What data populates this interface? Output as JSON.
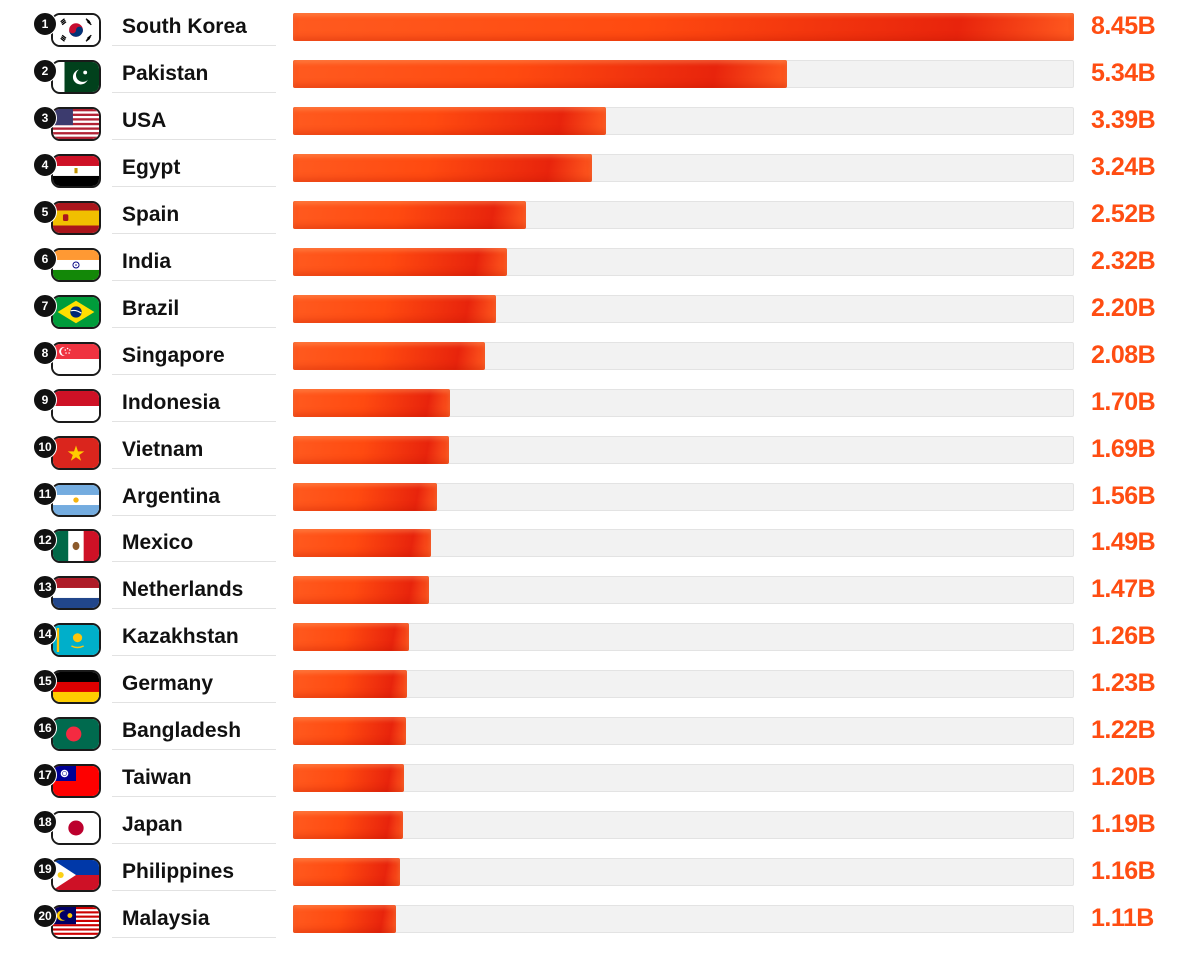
{
  "chart_data": {
    "type": "bar",
    "orientation": "horizontal",
    "xlim": [
      0,
      8.45
    ],
    "grid": false,
    "legend": "none",
    "accent_color": "#ff4d12",
    "track_color": "#f2f2f2",
    "rows": [
      {
        "rank": "1",
        "country": "South Korea",
        "value": 8.45,
        "label": "8.45B",
        "flag": "flag-south-korea"
      },
      {
        "rank": "2",
        "country": "Pakistan",
        "value": 5.34,
        "label": "5.34B",
        "flag": "flag-pakistan"
      },
      {
        "rank": "3",
        "country": "USA",
        "value": 3.39,
        "label": "3.39B",
        "flag": "flag-usa"
      },
      {
        "rank": "4",
        "country": "Egypt",
        "value": 3.24,
        "label": "3.24B",
        "flag": "flag-egypt"
      },
      {
        "rank": "5",
        "country": "Spain",
        "value": 2.52,
        "label": "2.52B",
        "flag": "flag-spain"
      },
      {
        "rank": "6",
        "country": "India",
        "value": 2.32,
        "label": "2.32B",
        "flag": "flag-india"
      },
      {
        "rank": "7",
        "country": "Brazil",
        "value": 2.2,
        "label": "2.20B",
        "flag": "flag-brazil"
      },
      {
        "rank": "8",
        "country": "Singapore",
        "value": 2.08,
        "label": "2.08B",
        "flag": "flag-singapore"
      },
      {
        "rank": "9",
        "country": "Indonesia",
        "value": 1.7,
        "label": "1.70B",
        "flag": "flag-indonesia"
      },
      {
        "rank": "10",
        "country": "Vietnam",
        "value": 1.69,
        "label": "1.69B",
        "flag": "flag-vietnam"
      },
      {
        "rank": "11",
        "country": "Argentina",
        "value": 1.56,
        "label": "1.56B",
        "flag": "flag-argentina"
      },
      {
        "rank": "12",
        "country": "Mexico",
        "value": 1.49,
        "label": "1.49B",
        "flag": "flag-mexico"
      },
      {
        "rank": "13",
        "country": "Netherlands",
        "value": 1.47,
        "label": "1.47B",
        "flag": "flag-netherlands"
      },
      {
        "rank": "14",
        "country": "Kazakhstan",
        "value": 1.26,
        "label": "1.26B",
        "flag": "flag-kazakhstan"
      },
      {
        "rank": "15",
        "country": "Germany",
        "value": 1.23,
        "label": "1.23B",
        "flag": "flag-germany"
      },
      {
        "rank": "16",
        "country": "Bangladesh",
        "value": 1.22,
        "label": "1.22B",
        "flag": "flag-bangladesh"
      },
      {
        "rank": "17",
        "country": "Taiwan",
        "value": 1.2,
        "label": "1.20B",
        "flag": "flag-taiwan"
      },
      {
        "rank": "18",
        "country": "Japan",
        "value": 1.19,
        "label": "1.19B",
        "flag": "flag-japan"
      },
      {
        "rank": "19",
        "country": "Philippines",
        "value": 1.16,
        "label": "1.16B",
        "flag": "flag-philippines"
      },
      {
        "rank": "20",
        "country": "Malaysia",
        "value": 1.11,
        "label": "1.11B",
        "flag": "flag-malaysia"
      }
    ]
  }
}
